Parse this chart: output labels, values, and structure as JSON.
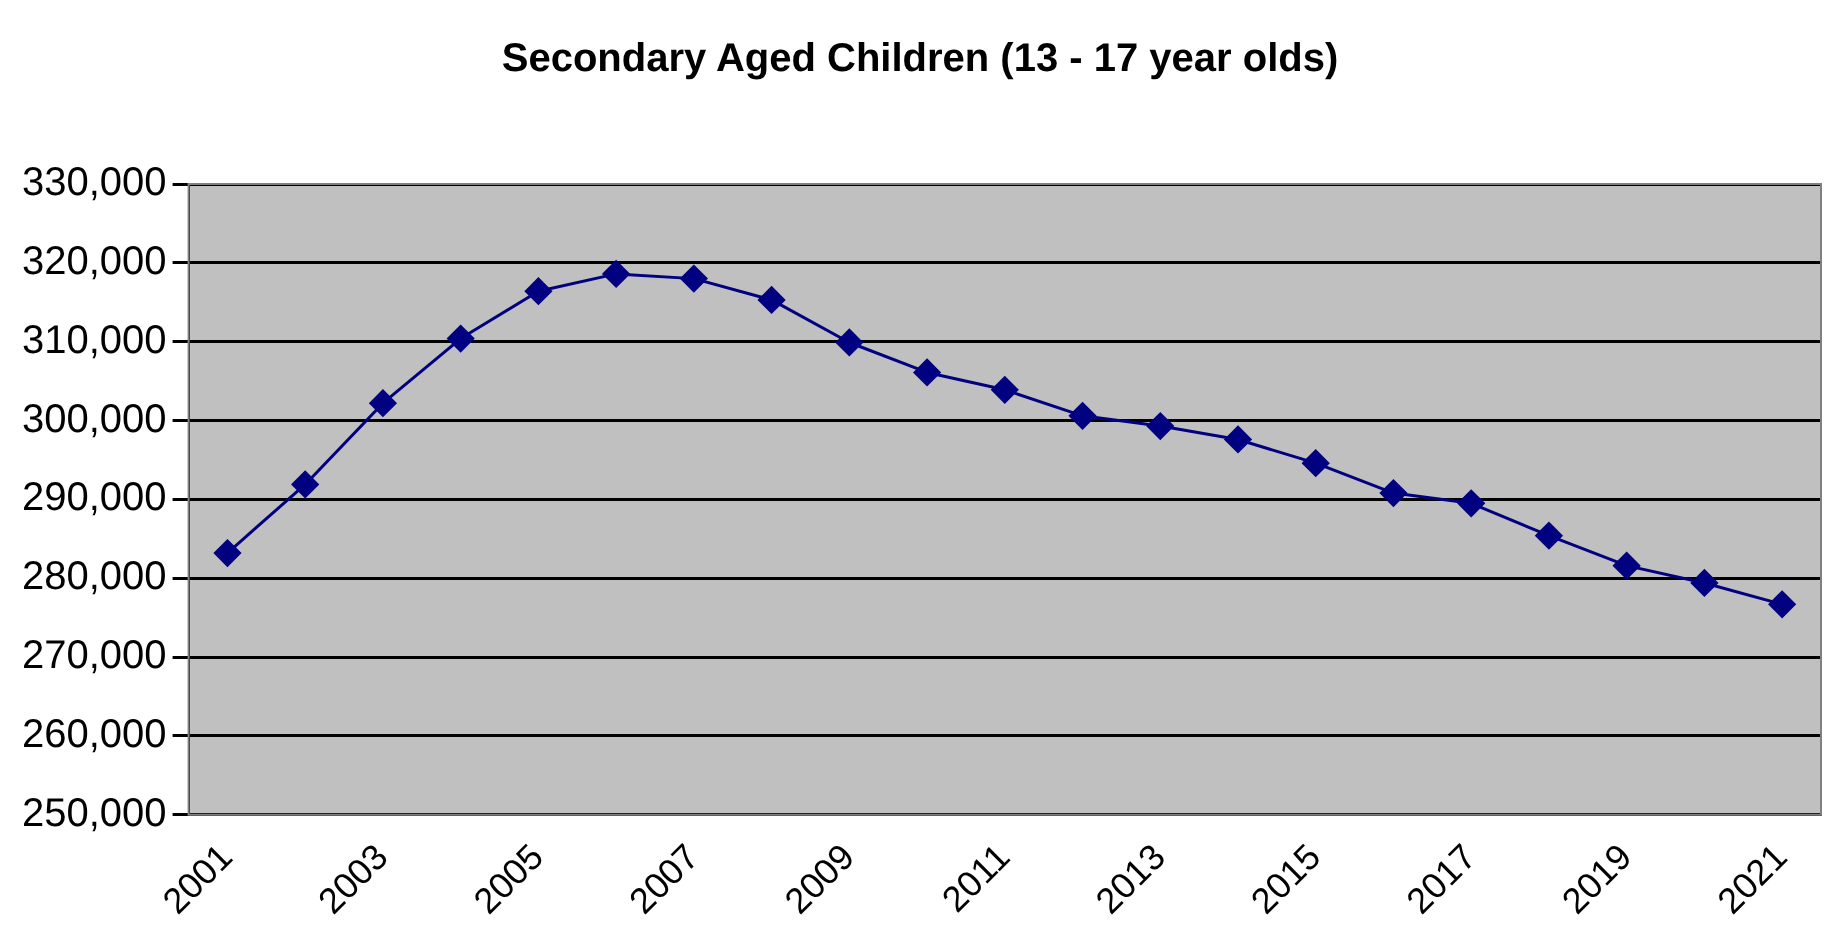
{
  "chart_data": {
    "type": "line",
    "title": "Secondary Aged Children (13 - 17 year olds)",
    "categories": [
      "2001",
      null,
      "2003",
      null,
      "2005",
      null,
      "2007",
      null,
      "2009",
      null,
      "2011",
      null,
      "2013",
      null,
      "2015",
      null,
      "2017",
      null,
      "2019",
      null,
      "2021"
    ],
    "series": [
      {
        "color": "#000080",
        "values": [
          283200,
          291900,
          302200,
          310400,
          316400,
          318600,
          318000,
          315300,
          309900,
          306100,
          303900,
          300600,
          299300,
          297600,
          294600,
          290800,
          289500,
          285400,
          281600,
          279400,
          276700
        ]
      }
    ],
    "ylim": [
      250000,
      330000
    ],
    "yticks": [
      {
        "value": 250000,
        "label": "250,000"
      },
      {
        "value": 260000,
        "label": "260,000"
      },
      {
        "value": 270000,
        "label": "270,000"
      },
      {
        "value": 280000,
        "label": "280,000"
      },
      {
        "value": 290000,
        "label": "290,000"
      },
      {
        "value": 300000,
        "label": "300,000"
      },
      {
        "value": 310000,
        "label": "310,000"
      },
      {
        "value": 320000,
        "label": "320,000"
      },
      {
        "value": 330000,
        "label": "330,000"
      }
    ],
    "grid": "y",
    "legend": false,
    "marker": "diamond",
    "line_style": "solid"
  }
}
